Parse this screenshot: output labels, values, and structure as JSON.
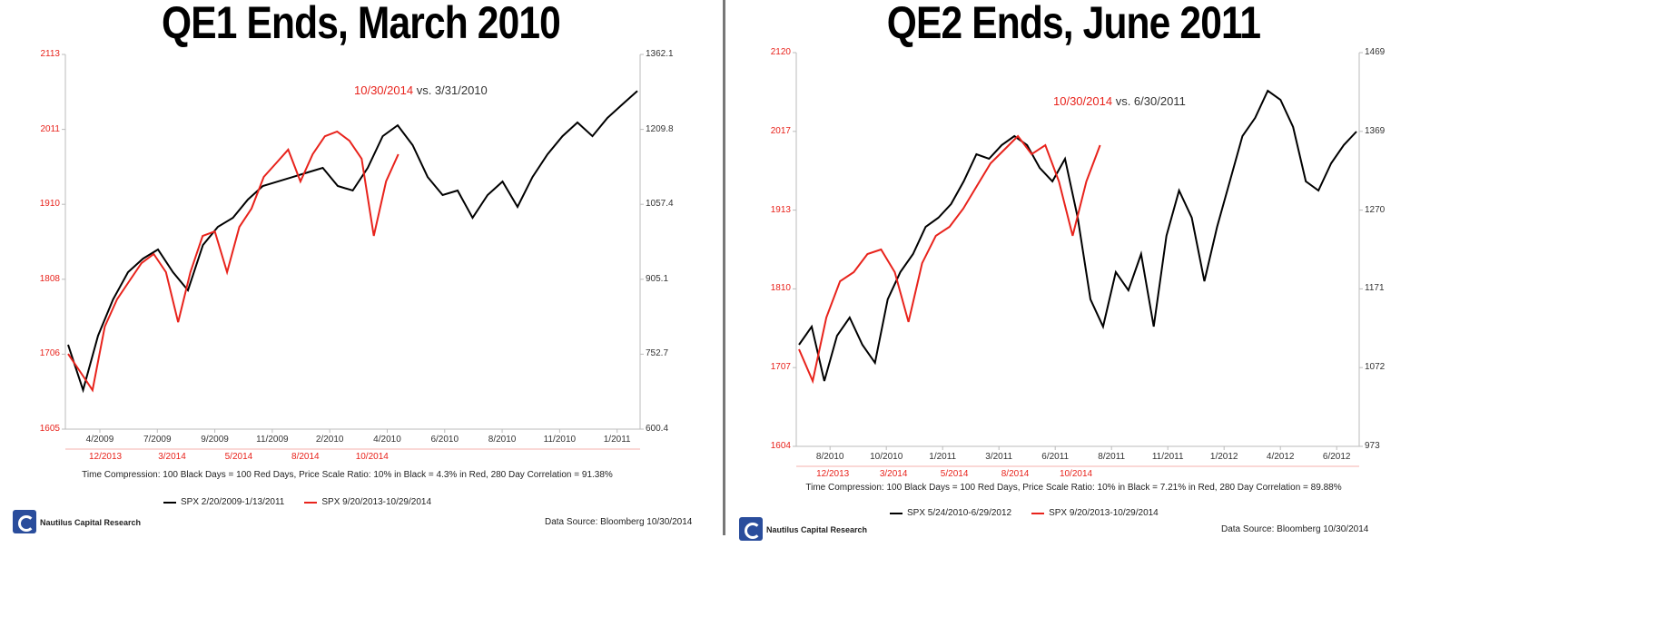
{
  "chart_data": [
    {
      "type": "line",
      "title": "QE1 Ends, March 2010",
      "annotation": {
        "red": "10/30/2014",
        "rest": "vs. 3/31/2010"
      },
      "left_axis": {
        "ticks": [
          "1605",
          "1706",
          "1808",
          "1910",
          "2011",
          "2113"
        ],
        "range": [
          1605,
          2113
        ],
        "color": "#e8231c"
      },
      "right_axis": {
        "ticks": [
          "600.4",
          "752.7",
          "905.1",
          "1057.4",
          "1209.8",
          "1362.1"
        ],
        "range": [
          600.4,
          1362.1
        ]
      },
      "x_ticks": [
        "4/2009",
        "7/2009",
        "9/2009",
        "11/2009",
        "2/2010",
        "4/2010",
        "6/2010",
        "8/2010",
        "11/2010",
        "1/2011"
      ],
      "x2_ticks": [
        "12/2013",
        "3/2014",
        "5/2014",
        "8/2014",
        "10/2014"
      ],
      "note": "Time Compression: 100 Black Days = 100 Red Days,  Price Scale Ratio: 10% in Black = 4.3% in Red, 280 Day Correlation = 91.38%",
      "series": [
        {
          "name": "SPX 2/20/2009-1/13/2011",
          "color": "#000000",
          "axis": "right",
          "values": [
            772,
            679.9,
            790.3,
            864,
            919.4,
            947,
            965.5,
            919.4,
            882.5,
            974.7,
            1011.6,
            1030,
            1067,
            1094.6,
            1103.8,
            1113,
            1122.3,
            1131.5,
            1094.6,
            1085.4,
            1131.5,
            1196,
            1218,
            1177.6,
            1113,
            1076.2,
            1085.4,
            1030,
            1076.2,
            1103.8,
            1052.2,
            1113,
            1159,
            1196,
            1223.7,
            1196,
            1233,
            1260.6,
            1288
          ]
        },
        {
          "name": "SPX 9/20/2013-10/29/2014",
          "color": "#e8231c",
          "axis": "left",
          "values": [
            1707,
            1682.5,
            1657.9,
            1744,
            1780.9,
            1805.5,
            1830,
            1842.4,
            1817.8,
            1750,
            1817.8,
            1867,
            1873,
            1817.8,
            1879,
            1904,
            1947,
            1965.4,
            1984,
            1940.8,
            1977.7,
            2002,
            2008.4,
            1996,
            1971.5,
            1867,
            1940.8,
            1977.7
          ]
        }
      ],
      "source": "Data Source: Bloomberg  10/30/2014",
      "brand": "Nautilus Capital Research"
    },
    {
      "type": "line",
      "title": "QE2 Ends, June 2011",
      "annotation": {
        "red": "10/30/2014",
        "rest": "vs. 6/30/2011"
      },
      "left_axis": {
        "ticks": [
          "1604",
          "1707",
          "1810",
          "1913",
          "2017",
          "2120"
        ],
        "range": [
          1604,
          2120
        ],
        "color": "#e8231c"
      },
      "right_axis": {
        "ticks": [
          "973",
          "1072",
          "1171",
          "1270",
          "1369",
          "1469"
        ],
        "range": [
          973,
          1469
        ]
      },
      "x_ticks": [
        "8/2010",
        "10/2010",
        "1/2011",
        "3/2011",
        "6/2011",
        "8/2011",
        "11/2011",
        "1/2012",
        "4/2012",
        "6/2012"
      ],
      "x2_ticks": [
        "12/2013",
        "3/2014",
        "5/2014",
        "8/2014",
        "10/2014"
      ],
      "note": "Time Compression: 100 Black Days = 100 Red Days,  Price Scale Ratio: 10% in Black = 7.21% in Red, 280 Day Correlation = 89.88%",
      "series": [
        {
          "name": "SPX 5/24/2010-6/29/2012",
          "color": "#000000",
          "axis": "right",
          "values": [
            1101,
            1123.9,
            1055.3,
            1112.4,
            1135.3,
            1101,
            1078.2,
            1158.2,
            1192.5,
            1215.3,
            1249.6,
            1261,
            1278.2,
            1306.8,
            1341,
            1335.3,
            1352.5,
            1363.9,
            1352.5,
            1323.9,
            1306.8,
            1335.3,
            1261,
            1158.2,
            1123.9,
            1192.5,
            1169.6,
            1215.3,
            1123.9,
            1238.2,
            1295.3,
            1261,
            1181,
            1249.6,
            1306.8,
            1363.9,
            1386.8,
            1421,
            1409.6,
            1375.3,
            1306.8,
            1295.3,
            1329.6,
            1352.5,
            1369.6
          ]
        },
        {
          "name": "SPX 9/20/2013-10/29/2014",
          "color": "#e8231c",
          "axis": "left",
          "values": [
            1731.2,
            1689.6,
            1772.8,
            1820.4,
            1832.3,
            1856,
            1862,
            1832.3,
            1767,
            1844,
            1880,
            1891.7,
            1915.5,
            1945.2,
            1975,
            1992.8,
            2010.6,
            1986.9,
            1998.7,
            1951.2,
            1880,
            1951.2,
            1998.7
          ]
        }
      ],
      "source": "Data Source: Bloomberg  10/30/2014",
      "brand": "Nautilus Capital Research"
    }
  ]
}
